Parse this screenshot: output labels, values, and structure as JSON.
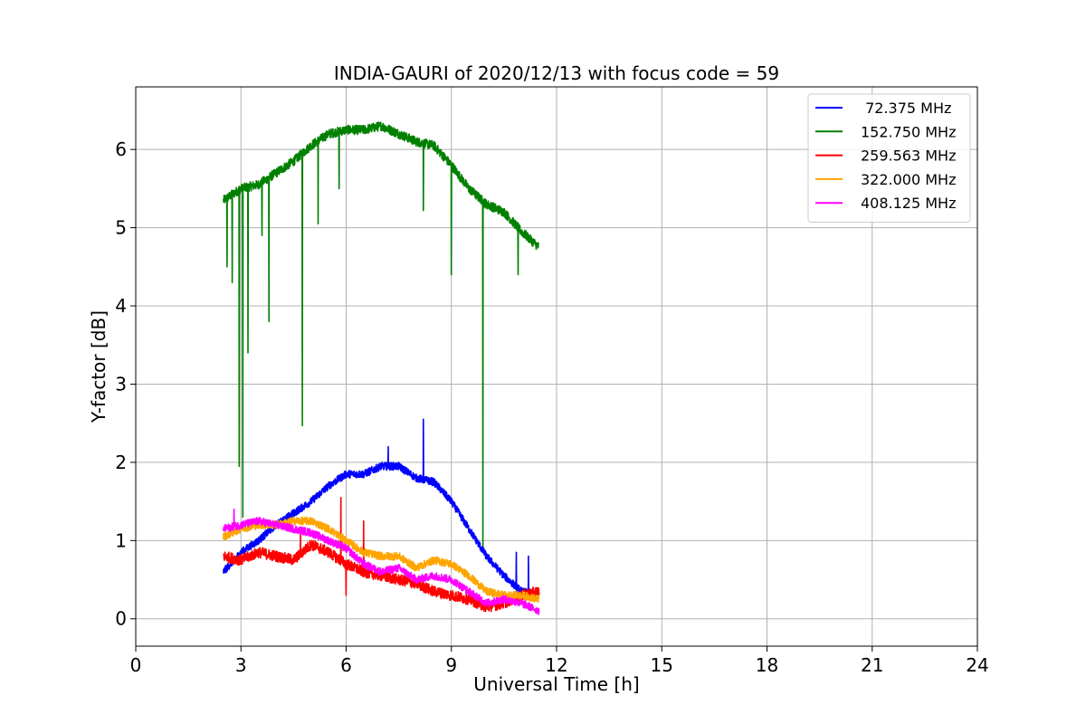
{
  "chart_data": {
    "type": "line",
    "title": "INDIA-GAURI of 2020/12/13 with focus code = 59",
    "xlabel": "Universal Time [h]",
    "ylabel": "Y-factor [dB]",
    "xlim": [
      0,
      24
    ],
    "ylim": [
      -0.35,
      6.8
    ],
    "xticks": [
      0,
      3,
      6,
      9,
      12,
      15,
      18,
      21,
      24
    ],
    "yticks": [
      0,
      1,
      2,
      3,
      4,
      5,
      6
    ],
    "grid": true,
    "legend_position": "top-right",
    "series": [
      {
        "name": " 72.375 MHz",
        "color": "#0000ff",
        "x": [
          2.5,
          3.0,
          3.5,
          4.0,
          4.5,
          5.0,
          5.5,
          6.0,
          6.5,
          7.0,
          7.5,
          8.0,
          8.5,
          9.0,
          9.5,
          10.0,
          10.5,
          11.0,
          11.5
        ],
        "y": [
          0.6,
          0.85,
          1.0,
          1.2,
          1.35,
          1.5,
          1.7,
          1.85,
          1.85,
          1.95,
          1.95,
          1.8,
          1.75,
          1.5,
          1.15,
          0.8,
          0.55,
          0.35,
          0.3
        ],
        "spikes": [
          [
            8.2,
            2.55
          ],
          [
            7.2,
            2.2
          ],
          [
            10.85,
            0.85
          ],
          [
            11.2,
            0.8
          ]
        ]
      },
      {
        "name": "152.750 MHz",
        "color": "#008000",
        "x": [
          2.5,
          3.0,
          3.5,
          4.0,
          4.5,
          5.0,
          5.5,
          6.0,
          6.5,
          7.0,
          7.5,
          8.0,
          8.5,
          9.0,
          9.5,
          10.0,
          10.5,
          11.0,
          11.5
        ],
        "y": [
          5.35,
          5.5,
          5.55,
          5.7,
          5.85,
          6.05,
          6.2,
          6.25,
          6.25,
          6.3,
          6.2,
          6.1,
          6.05,
          5.8,
          5.5,
          5.3,
          5.2,
          4.95,
          4.75
        ],
        "spikes": [
          [
            2.6,
            4.5
          ],
          [
            2.75,
            4.3
          ],
          [
            2.95,
            1.95
          ],
          [
            3.05,
            1.3
          ],
          [
            3.2,
            3.4
          ],
          [
            3.6,
            4.9
          ],
          [
            3.8,
            3.8
          ],
          [
            4.75,
            2.47
          ],
          [
            5.2,
            5.05
          ],
          [
            5.8,
            5.5
          ],
          [
            8.2,
            5.22
          ],
          [
            9.0,
            4.4
          ],
          [
            9.9,
            0.85
          ],
          [
            10.9,
            4.4
          ]
        ]
      },
      {
        "name": "259.563 MHz",
        "color": "#ff0000",
        "x": [
          2.5,
          3.0,
          3.5,
          4.0,
          4.5,
          5.0,
          5.5,
          6.0,
          6.5,
          7.0,
          7.5,
          8.0,
          8.5,
          9.0,
          9.5,
          10.0,
          10.5,
          11.0,
          11.5
        ],
        "y": [
          0.8,
          0.75,
          0.85,
          0.8,
          0.75,
          0.95,
          0.85,
          0.7,
          0.6,
          0.55,
          0.5,
          0.45,
          0.35,
          0.3,
          0.25,
          0.15,
          0.2,
          0.3,
          0.35
        ],
        "spikes": [
          [
            5.85,
            1.55
          ],
          [
            6.0,
            0.3
          ],
          [
            6.5,
            1.25
          ],
          [
            4.7,
            1.15
          ]
        ]
      },
      {
        "name": "322.000 MHz",
        "color": "#ffa500",
        "x": [
          2.5,
          3.0,
          3.5,
          4.0,
          4.5,
          5.0,
          5.5,
          6.0,
          6.5,
          7.0,
          7.5,
          8.0,
          8.5,
          9.0,
          9.5,
          10.0,
          10.5,
          11.0,
          11.5
        ],
        "y": [
          1.05,
          1.15,
          1.2,
          1.2,
          1.25,
          1.25,
          1.15,
          1.0,
          0.85,
          0.8,
          0.8,
          0.65,
          0.75,
          0.7,
          0.55,
          0.35,
          0.3,
          0.3,
          0.25
        ],
        "spikes": []
      },
      {
        "name": "408.125 MHz",
        "color": "#ff00ff",
        "x": [
          2.5,
          3.0,
          3.5,
          4.0,
          4.5,
          5.0,
          5.5,
          6.0,
          6.5,
          7.0,
          7.5,
          8.0,
          8.5,
          9.0,
          9.5,
          10.0,
          10.5,
          11.0,
          11.5
        ],
        "y": [
          1.15,
          1.2,
          1.25,
          1.2,
          1.15,
          1.1,
          1.0,
          0.9,
          0.7,
          0.6,
          0.65,
          0.5,
          0.55,
          0.5,
          0.35,
          0.2,
          0.25,
          0.2,
          0.1
        ],
        "spikes": [
          [
            2.8,
            1.4
          ]
        ]
      }
    ]
  }
}
